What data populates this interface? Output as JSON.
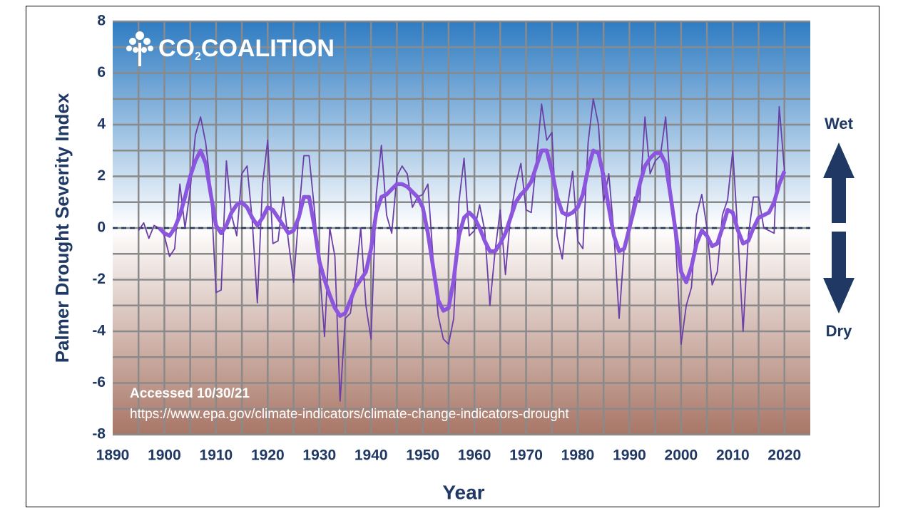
{
  "chart_data": {
    "type": "line",
    "y_label": "Palmer Drought Severity Index",
    "x_label": "Year",
    "logo": {
      "text": "CO",
      "subscript": "2",
      "text2": "COALITION"
    },
    "annotations": [
      "Accessed 10/30/21",
      "https://www.epa.gov/climate-indicators/climate-change-indicators-drought"
    ],
    "wet_label": "Wet",
    "dry_label": "Dry",
    "xlim": [
      1890,
      2025
    ],
    "ylim": [
      -8,
      8
    ],
    "xticks": [
      1890,
      1900,
      1910,
      1920,
      1930,
      1940,
      1950,
      1960,
      1970,
      1980,
      1990,
      2000,
      2010,
      2020
    ],
    "yticks": [
      -8,
      -6,
      -4,
      -2,
      0,
      2,
      4,
      6,
      8
    ],
    "grid": true,
    "reference_line": 0,
    "x": [
      1895,
      1896,
      1897,
      1898,
      1899,
      1900,
      1901,
      1902,
      1903,
      1904,
      1905,
      1906,
      1907,
      1908,
      1909,
      1910,
      1911,
      1912,
      1913,
      1914,
      1915,
      1916,
      1917,
      1918,
      1919,
      1920,
      1921,
      1922,
      1923,
      1924,
      1925,
      1926,
      1927,
      1928,
      1929,
      1930,
      1931,
      1932,
      1933,
      1934,
      1935,
      1936,
      1937,
      1938,
      1939,
      1940,
      1941,
      1942,
      1943,
      1944,
      1945,
      1946,
      1947,
      1948,
      1949,
      1950,
      1951,
      1952,
      1953,
      1954,
      1955,
      1956,
      1957,
      1958,
      1959,
      1960,
      1961,
      1962,
      1963,
      1964,
      1965,
      1966,
      1967,
      1968,
      1969,
      1970,
      1971,
      1972,
      1973,
      1974,
      1975,
      1976,
      1977,
      1978,
      1979,
      1980,
      1981,
      1982,
      1983,
      1984,
      1985,
      1986,
      1987,
      1988,
      1989,
      1990,
      1991,
      1992,
      1993,
      1994,
      1995,
      1996,
      1997,
      1998,
      1999,
      2000,
      2001,
      2002,
      2003,
      2004,
      2005,
      2006,
      2007,
      2008,
      2009,
      2010,
      2011,
      2012,
      2013,
      2014,
      2015,
      2016,
      2017,
      2018,
      2019,
      2020
    ],
    "series": [
      {
        "color": "#6a3fa6",
        "width": 1.8,
        "values": [
          -0.1,
          0.2,
          -0.4,
          0.1,
          0.0,
          -0.3,
          -1.1,
          -0.8,
          1.7,
          0.0,
          1.5,
          3.6,
          4.3,
          3.3,
          1.5,
          -2.5,
          -2.4,
          2.6,
          0.5,
          -0.3,
          2.1,
          2.4,
          0.3,
          -2.9,
          1.7,
          3.4,
          -0.6,
          -0.5,
          1.2,
          -0.5,
          -2.1,
          0.5,
          2.8,
          2.8,
          0.8,
          -1.5,
          -4.2,
          0.0,
          -1.1,
          -6.7,
          -3.5,
          -3.3,
          -2.0,
          0.0,
          -3.0,
          -4.3,
          1.3,
          3.2,
          0.5,
          -0.2,
          2.0,
          2.4,
          2.1,
          0.8,
          1.2,
          1.3,
          1.7,
          -1.2,
          -3.4,
          -4.3,
          -4.5,
          -3.5,
          1.0,
          2.7,
          -0.3,
          -0.1,
          0.9,
          -0.1,
          -3.0,
          -0.9,
          0.7,
          -1.8,
          0.5,
          1.7,
          2.5,
          0.7,
          0.6,
          2.6,
          4.8,
          3.4,
          3.7,
          -0.3,
          -1.2,
          0.8,
          2.2,
          -0.5,
          -0.8,
          3.3,
          5.0,
          4.0,
          1.0,
          2.1,
          -0.2,
          -3.5,
          -0.7,
          0.1,
          1.2,
          1.0,
          4.3,
          2.1,
          2.6,
          2.8,
          4.3,
          1.5,
          -0.8,
          -4.5,
          -3.0,
          -2.3,
          0.5,
          1.3,
          0.0,
          -2.2,
          -1.7,
          0.5,
          1.1,
          3.0,
          -0.3,
          -4.0,
          -0.3,
          1.2,
          1.2,
          0.0,
          -0.1,
          -0.2,
          4.7,
          2.2
        ]
      },
      {
        "color": "#8b55dd",
        "width": 5.5,
        "values": [
          null,
          null,
          null,
          null,
          0.0,
          -0.2,
          -0.3,
          0.0,
          0.5,
          1.2,
          2.0,
          2.6,
          3.0,
          2.5,
          1.3,
          0.1,
          -0.2,
          0.1,
          0.6,
          0.9,
          1.0,
          0.8,
          0.4,
          0.1,
          0.4,
          0.8,
          0.7,
          0.4,
          0.1,
          -0.2,
          -0.1,
          0.4,
          1.2,
          1.2,
          0.1,
          -1.3,
          -2.0,
          -2.6,
          -3.1,
          -3.4,
          -3.3,
          -2.8,
          -2.3,
          -2.0,
          -1.7,
          -0.8,
          0.6,
          1.2,
          1.3,
          1.5,
          1.7,
          1.7,
          1.6,
          1.4,
          1.2,
          0.8,
          -0.2,
          -1.5,
          -2.8,
          -3.2,
          -3.1,
          -2.0,
          -0.3,
          0.4,
          0.6,
          0.4,
          0.0,
          -0.5,
          -0.9,
          -0.9,
          -0.6,
          -0.2,
          0.4,
          1.0,
          1.3,
          1.5,
          1.8,
          2.4,
          3.0,
          3.0,
          2.2,
          1.2,
          0.6,
          0.5,
          0.6,
          0.8,
          1.3,
          2.3,
          3.0,
          2.9,
          2.0,
          0.8,
          -0.3,
          -0.9,
          -0.8,
          0.0,
          0.8,
          1.7,
          2.4,
          2.7,
          2.9,
          2.9,
          2.5,
          1.2,
          -0.2,
          -1.7,
          -2.1,
          -1.5,
          -0.6,
          -0.1,
          -0.3,
          -0.7,
          -0.6,
          0.0,
          0.7,
          0.6,
          -0.1,
          -0.6,
          -0.5,
          0.0,
          0.4,
          0.5,
          0.6,
          1.0,
          1.7,
          2.2
        ]
      }
    ]
  }
}
